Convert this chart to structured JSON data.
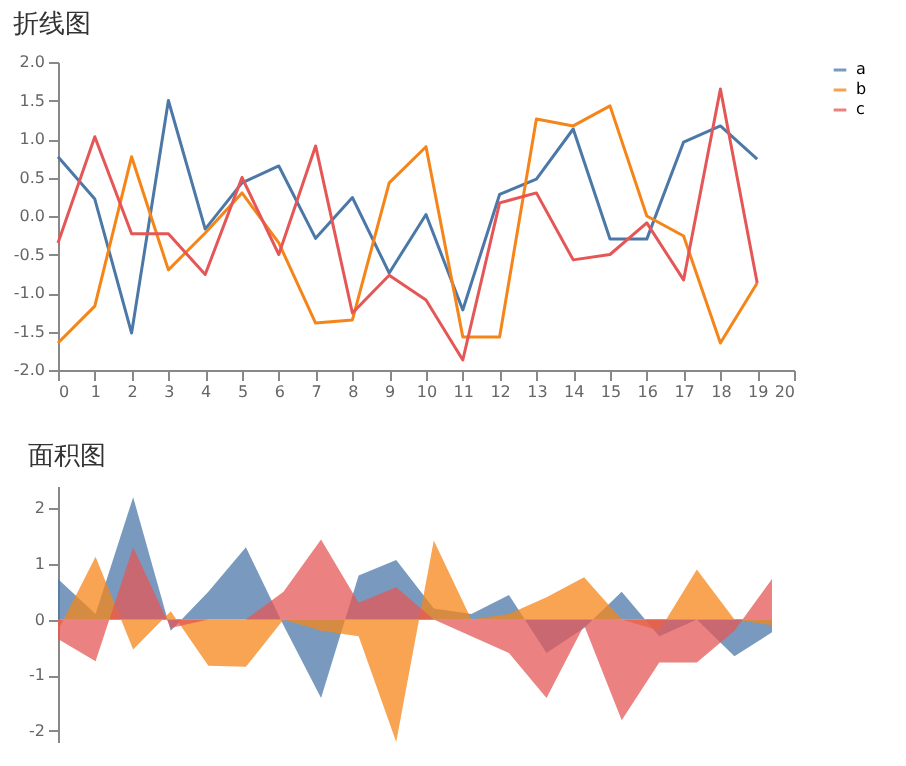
{
  "chart_data": [
    {
      "type": "line",
      "title": "折线图",
      "x": [
        0,
        1,
        2,
        3,
        4,
        5,
        6,
        7,
        8,
        9,
        10,
        11,
        12,
        13,
        14,
        15,
        16,
        17,
        18,
        19
      ],
      "xlim": [
        0,
        20
      ],
      "xticks": [
        0,
        1,
        2,
        3,
        4,
        5,
        6,
        7,
        8,
        9,
        10,
        11,
        12,
        13,
        14,
        15,
        16,
        17,
        18,
        19,
        20
      ],
      "ylim": [
        -2,
        2
      ],
      "yticks": [
        {
          "value": -2,
          "label": "-2.0"
        },
        {
          "value": -1.5,
          "label": "-1.5"
        },
        {
          "value": -1,
          "label": "-1.0"
        },
        {
          "value": -0.5,
          "label": "-0.5"
        },
        {
          "value": 0,
          "label": "0.0"
        },
        {
          "value": 0.5,
          "label": "0.5"
        },
        {
          "value": 1,
          "label": "1.0"
        },
        {
          "value": 1.5,
          "label": "1.5"
        },
        {
          "value": 2,
          "label": "2.0"
        }
      ],
      "legend": "top right",
      "series": [
        {
          "name": "a",
          "color": "#4c78a8",
          "values": [
            0.77,
            0.22,
            -1.52,
            1.5,
            -0.17,
            0.43,
            0.65,
            -0.29,
            0.24,
            -0.74,
            0.02,
            -1.22,
            0.28,
            0.48,
            1.13,
            -0.3,
            -0.3,
            0.96,
            1.17,
            0.74
          ]
        },
        {
          "name": "b",
          "color": "#f58518",
          "values": [
            -1.65,
            -1.17,
            0.77,
            -0.7,
            -0.22,
            0.3,
            -0.35,
            -1.39,
            -1.35,
            0.43,
            0.9,
            -1.57,
            -1.57,
            1.26,
            1.17,
            1.43,
            0,
            -0.26,
            -1.65,
            -0.87
          ]
        },
        {
          "name": "c",
          "color": "#e45756",
          "values": [
            -0.35,
            1.03,
            -0.23,
            -0.23,
            -0.76,
            0.5,
            -0.5,
            0.91,
            -1.26,
            -0.77,
            -1.09,
            -1.87,
            0.17,
            0.3,
            -0.57,
            -0.5,
            -0.09,
            -0.83,
            1.65,
            -0.87
          ]
        }
      ]
    },
    {
      "type": "area",
      "title": "面积图",
      "categories": [
        null,
        null,
        null,
        null,
        null,
        null,
        null,
        null,
        null,
        null,
        null,
        null,
        null,
        null,
        null,
        null,
        null,
        null,
        null,
        null
      ],
      "ylim": [
        -2.2,
        2.4
      ],
      "yticks": [
        -2,
        -1,
        0,
        1,
        2
      ],
      "tick_labels": "y",
      "legend": "top right",
      "series": [
        {
          "name": "a",
          "color": "#4c78a8",
          "values": [
            0.73,
            0.1,
            2.2,
            -0.2,
            0.5,
            1.3,
            -0.1,
            -1.41,
            0.79,
            1.07,
            0.2,
            0.1,
            0.44,
            -0.6,
            -0.15,
            0.5,
            -0.3,
            0.0,
            -0.66,
            -0.23
          ]
        },
        {
          "name": "b",
          "color": "#f58518",
          "values": [
            -0.2,
            1.13,
            -0.54,
            0.15,
            -0.83,
            -0.85,
            0.0,
            -0.2,
            -0.3,
            -2.2,
            1.42,
            0.0,
            0.1,
            0.4,
            0.76,
            0.0,
            -0.2,
            0.9,
            0.0,
            -0.1
          ]
        },
        {
          "name": "c",
          "color": "#e45756",
          "values": [
            -0.35,
            -0.75,
            1.3,
            -0.15,
            0.0,
            0.0,
            0.5,
            1.44,
            0.3,
            0.58,
            0.0,
            -0.3,
            -0.6,
            -1.41,
            -0.1,
            -1.81,
            -0.77,
            -0.77,
            -0.2,
            0.73
          ]
        }
      ]
    }
  ]
}
